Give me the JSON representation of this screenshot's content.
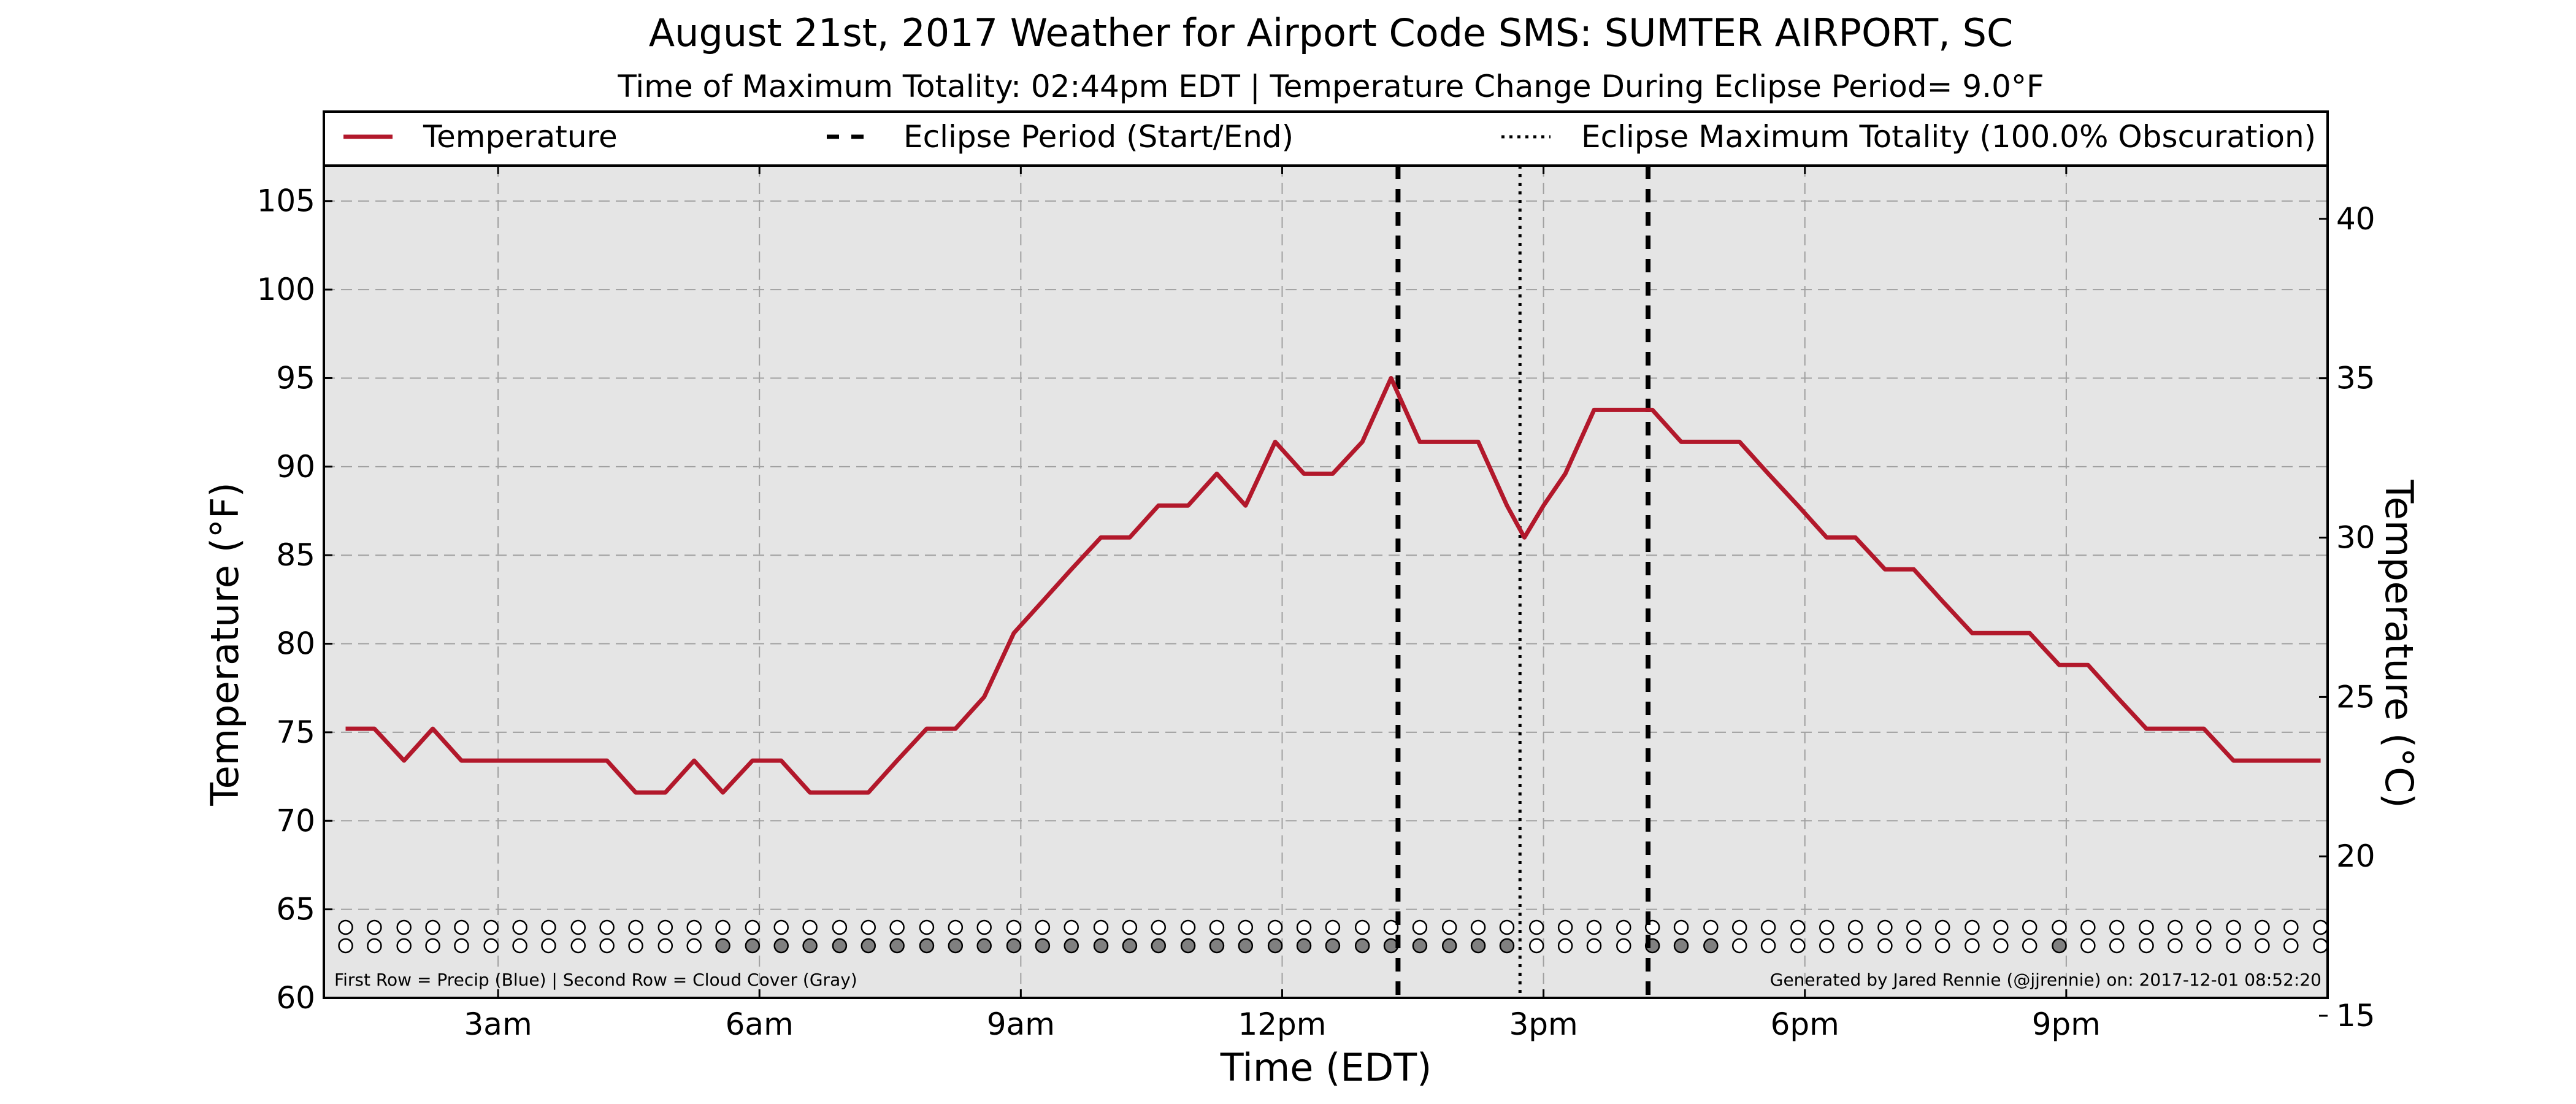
{
  "chart_data": {
    "type": "line",
    "title": "August 21st, 2017 Weather for Airport Code SMS: SUMTER AIRPORT, SC",
    "subtitle": "Time of Maximum Totality: 02:44pm EDT | Temperature Change During Eclipse Period= 9.0°F",
    "xlabel": "Time (EDT)",
    "ylabel": "Temperature (°F)",
    "ylabel_right": "Temperature (°C)",
    "xlim": [
      1,
      24
    ],
    "ylim": [
      60,
      107
    ],
    "ylim_right": [
      15.56,
      41.67
    ],
    "x_ticks": [
      3,
      6,
      9,
      12,
      15,
      18,
      21
    ],
    "x_tick_labels": [
      "3am",
      "6am",
      "9am",
      "12pm",
      "3pm",
      "6pm",
      "9pm"
    ],
    "y_ticks": [
      60,
      65,
      70,
      75,
      80,
      85,
      90,
      95,
      100,
      105
    ],
    "y_tick_labels": [
      "60",
      "65",
      "70",
      "75",
      "80",
      "85",
      "90",
      "95",
      "100",
      "105"
    ],
    "y2_ticks": [
      15,
      20,
      25,
      30,
      35,
      40
    ],
    "y2_tick_labels": [
      "15",
      "20",
      "25",
      "30",
      "35",
      "40"
    ],
    "grid": true,
    "legend_position": "top",
    "legend": {
      "temperature": "Temperature",
      "eclipse_period": "Eclipse Period (Start/End)",
      "max_totality": "Eclipse Maximum Totality (100.0% Obscuration)"
    },
    "eclipse_start": 13.33,
    "eclipse_end": 16.2,
    "max_totality_time": 14.73,
    "series": [
      {
        "name": "Temperature",
        "color": "#b2182b",
        "x": [
          1.25,
          1.58,
          1.92,
          2.25,
          2.58,
          2.92,
          3.25,
          3.58,
          3.92,
          4.25,
          4.58,
          4.92,
          5.25,
          5.58,
          5.92,
          6.25,
          6.58,
          6.92,
          7.25,
          7.58,
          7.92,
          8.25,
          8.58,
          8.92,
          9.25,
          9.58,
          9.92,
          10.25,
          10.58,
          10.92,
          11.25,
          11.58,
          11.92,
          12.25,
          12.58,
          12.92,
          13.25,
          13.58,
          13.92,
          14.25,
          14.58,
          14.78,
          15.0,
          15.25,
          15.58,
          15.92,
          16.25,
          16.58,
          16.92,
          17.25,
          17.58,
          17.92,
          18.25,
          18.58,
          18.92,
          19.25,
          19.58,
          19.92,
          20.25,
          20.58,
          20.92,
          21.25,
          21.58,
          21.92,
          22.25,
          22.58,
          22.92,
          23.25,
          23.58,
          23.92
        ],
        "values": [
          75.2,
          75.2,
          73.4,
          75.2,
          73.4,
          73.4,
          73.4,
          73.4,
          73.4,
          73.4,
          71.6,
          71.6,
          73.4,
          71.6,
          73.4,
          73.4,
          71.6,
          71.6,
          71.6,
          73.4,
          75.2,
          75.2,
          77.0,
          80.6,
          82.4,
          84.2,
          86.0,
          86.0,
          87.8,
          87.8,
          89.6,
          87.8,
          91.4,
          89.6,
          89.6,
          91.4,
          95.0,
          91.4,
          91.4,
          91.4,
          87.8,
          86.0,
          87.8,
          89.6,
          93.2,
          93.2,
          93.2,
          91.4,
          91.4,
          91.4,
          89.6,
          87.8,
          86.0,
          86.0,
          84.2,
          84.2,
          82.4,
          80.6,
          80.6,
          80.6,
          78.8,
          78.8,
          77.0,
          75.2,
          75.2,
          75.2,
          73.4,
          73.4,
          73.4,
          73.4
        ]
      }
    ],
    "indicator_rows": {
      "x": [
        1.25,
        1.58,
        1.92,
        2.25,
        2.58,
        2.92,
        3.25,
        3.58,
        3.92,
        4.25,
        4.58,
        4.92,
        5.25,
        5.58,
        5.92,
        6.25,
        6.58,
        6.92,
        7.25,
        7.58,
        7.92,
        8.25,
        8.58,
        8.92,
        9.25,
        9.58,
        9.92,
        10.25,
        10.58,
        10.92,
        11.25,
        11.58,
        11.92,
        12.25,
        12.58,
        12.92,
        13.25,
        13.58,
        13.92,
        14.25,
        14.58,
        14.92,
        15.25,
        15.58,
        15.92,
        16.25,
        16.58,
        16.92,
        17.25,
        17.58,
        17.92,
        18.25,
        18.58,
        18.92,
        19.25,
        19.58,
        19.92,
        20.25,
        20.58,
        20.92,
        21.25,
        21.58,
        21.92,
        22.25,
        22.58,
        22.92,
        23.25,
        23.58,
        23.92
      ],
      "precip": [
        0,
        0,
        0,
        0,
        0,
        0,
        0,
        0,
        0,
        0,
        0,
        0,
        0,
        0,
        0,
        0,
        0,
        0,
        0,
        0,
        0,
        0,
        0,
        0,
        0,
        0,
        0,
        0,
        0,
        0,
        0,
        0,
        0,
        0,
        0,
        0,
        0,
        0,
        0,
        0,
        0,
        0,
        0,
        0,
        0,
        0,
        0,
        0,
        0,
        0,
        0,
        0,
        0,
        0,
        0,
        0,
        0,
        0,
        0,
        0,
        0,
        0,
        0,
        0,
        0,
        0,
        0,
        0,
        0
      ],
      "cloud": [
        0,
        0,
        0,
        0,
        0,
        0,
        0,
        0,
        0,
        0,
        0,
        0,
        0,
        1,
        1,
        1,
        1,
        1,
        1,
        1,
        1,
        1,
        1,
        1,
        1,
        1,
        1,
        1,
        1,
        1,
        1,
        1,
        1,
        1,
        1,
        1,
        1,
        1,
        1,
        1,
        1,
        0,
        0,
        0,
        0,
        1,
        1,
        1,
        0,
        0,
        0,
        0,
        0,
        0,
        0,
        0,
        0,
        0,
        0,
        1,
        0,
        0,
        0,
        0,
        0,
        0,
        0,
        0,
        0
      ]
    },
    "footnote_left": "First Row = Precip (Blue) | Second Row = Cloud Cover (Gray)",
    "footnote_right": "Generated by Jared Rennie (@jjrennie) on: 2017-12-01 08:52:20"
  }
}
